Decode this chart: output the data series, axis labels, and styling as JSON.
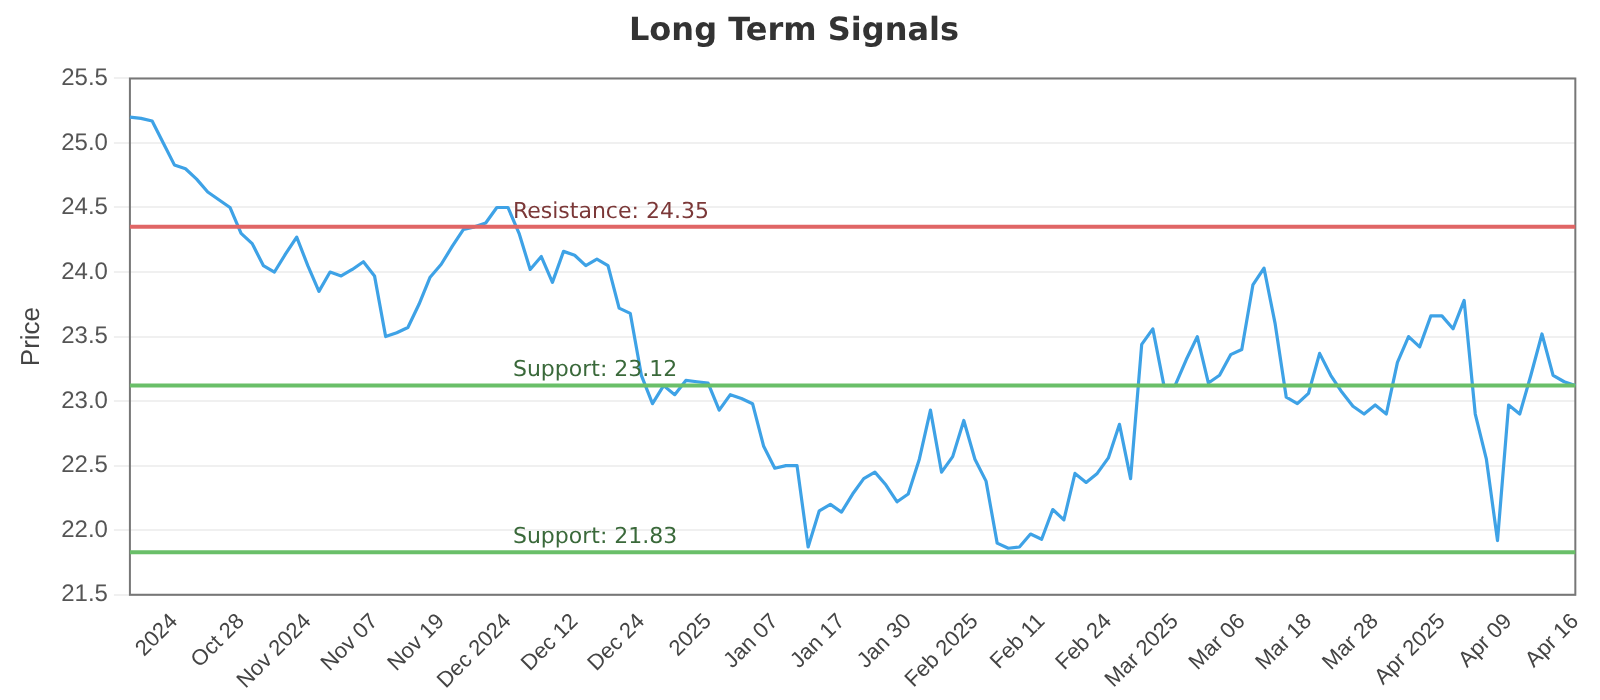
{
  "chart_data": {
    "type": "line",
    "title": "Long Term Signals",
    "ylabel": "Price",
    "categories": [
      null,
      null,
      null,
      null,
      "2024",
      null,
      null,
      null,
      null,
      null,
      "Oct 28",
      null,
      null,
      null,
      null,
      null,
      "Nov 2024",
      null,
      null,
      null,
      null,
      null,
      "Nov 07",
      null,
      null,
      null,
      null,
      null,
      "Nov 19",
      null,
      null,
      null,
      null,
      null,
      "Dec 2024",
      null,
      null,
      null,
      null,
      null,
      "Dec 12",
      null,
      null,
      null,
      null,
      null,
      "Dec 24",
      null,
      null,
      null,
      null,
      null,
      "2025",
      null,
      null,
      null,
      null,
      null,
      "Jan 07",
      null,
      null,
      null,
      null,
      null,
      "Jan 17",
      null,
      null,
      null,
      null,
      null,
      "Jan 30",
      null,
      null,
      null,
      null,
      null,
      "Feb 2025",
      null,
      null,
      null,
      null,
      null,
      "Feb 11",
      null,
      null,
      null,
      null,
      null,
      "Feb 24",
      null,
      null,
      null,
      null,
      null,
      "Mar 2025",
      null,
      null,
      null,
      null,
      null,
      "Mar 06",
      null,
      null,
      null,
      null,
      null,
      "Mar 18",
      null,
      null,
      null,
      null,
      null,
      "Mar 28",
      null,
      null,
      null,
      null,
      null,
      "Apr 2025",
      null,
      null,
      null,
      null,
      null,
      "Apr 09",
      null,
      null,
      null,
      null,
      null,
      "Apr 16"
    ],
    "series": [
      {
        "color": "#3ea2e6",
        "values": [
          25.2,
          25.19,
          25.17,
          25.0,
          24.83,
          24.8,
          24.72,
          24.62,
          24.56,
          24.5,
          24.3,
          24.22,
          24.05,
          24.0,
          24.14,
          24.27,
          24.05,
          23.85,
          24.0,
          23.97,
          24.02,
          24.08,
          23.97,
          23.5,
          23.53,
          23.57,
          23.75,
          23.96,
          24.06,
          24.2,
          24.33,
          24.35,
          24.38,
          24.5,
          24.5,
          24.3,
          24.02,
          24.12,
          23.92,
          24.16,
          24.13,
          24.05,
          24.1,
          24.05,
          23.72,
          23.68,
          23.2,
          22.98,
          23.12,
          23.05,
          23.16,
          23.15,
          23.14,
          22.93,
          23.05,
          23.02,
          22.98,
          22.65,
          22.48,
          22.5,
          22.5,
          21.87,
          22.15,
          22.2,
          22.14,
          22.28,
          22.4,
          22.45,
          22.35,
          22.22,
          22.28,
          22.55,
          22.93,
          22.45,
          22.57,
          22.85,
          22.55,
          22.38,
          21.9,
          21.86,
          21.87,
          21.97,
          21.93,
          22.16,
          22.08,
          22.44,
          22.37,
          22.44,
          22.56,
          22.82,
          22.4,
          23.44,
          23.56,
          23.12,
          23.12,
          23.32,
          23.5,
          23.14,
          23.2,
          23.36,
          23.4,
          23.9,
          24.03,
          23.6,
          23.03,
          22.98,
          23.06,
          23.37,
          23.2,
          23.07,
          22.96,
          22.9,
          22.97,
          22.9,
          23.3,
          23.5,
          23.42,
          23.66,
          23.66,
          23.56,
          23.78,
          22.9,
          22.55,
          21.92,
          22.97,
          22.9,
          23.2,
          23.52,
          23.2,
          23.15,
          23.12
        ]
      }
    ],
    "ylim": [
      21.5,
      25.5
    ],
    "yticks": [
      21.5,
      {
        "value": 22,
        "label": "22.0"
      },
      22.5,
      {
        "value": 23,
        "label": "23.0"
      },
      23.5,
      {
        "value": 24,
        "label": "24.0"
      },
      24.5,
      {
        "value": 25,
        "label": "25.0"
      },
      25.5
    ],
    "ref_lines": [
      {
        "axis": "y",
        "value": 24.35,
        "label": "Resistance: 24.35",
        "color": "#e06666"
      },
      {
        "axis": "y",
        "value": 23.12,
        "label": "Support: 23.12",
        "color": "#6abf69"
      },
      {
        "axis": "y",
        "value": 21.83,
        "label": "Support: 21.83",
        "color": "#6abf69"
      }
    ],
    "grid": "y",
    "legend": false,
    "marker": "none",
    "line_style": "solid"
  }
}
